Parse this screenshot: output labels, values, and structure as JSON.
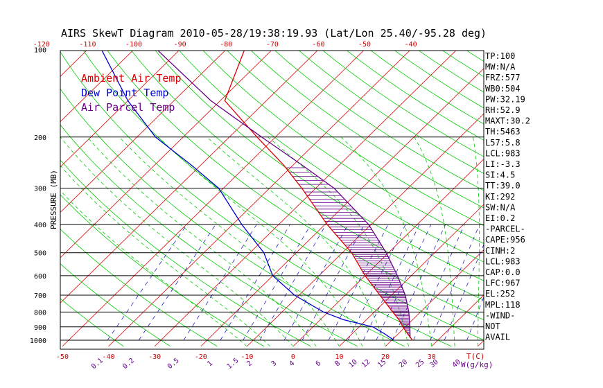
{
  "chart_data": {
    "type": "line",
    "title": "AIRS SkewT Diagram 2010-05-28/19:38:19.93 (Lat/Lon 25.40/-95.28 deg)",
    "ylabel": "PRESSURE (MB)",
    "xlabel": "T(C)",
    "mixing_ratio_unit": "W(g/kg)",
    "y_scale": "log",
    "ylim": [
      1050,
      100
    ],
    "pressure_ticks": [
      100,
      200,
      300,
      400,
      500,
      600,
      700,
      800,
      900,
      1000
    ],
    "bottom_temp_ticks": [
      -50,
      -40,
      -30,
      -20,
      -10,
      0,
      10,
      20,
      30
    ],
    "top_temp_ticks": [
      -120,
      -110,
      -100,
      -90,
      -80,
      -70,
      -60,
      -50,
      -40
    ],
    "mixing_ratio_labels": [
      "0.1",
      "0.2",
      "0.5",
      "1",
      "1.5",
      "2",
      "3",
      "4",
      "6",
      "8",
      "10",
      "12",
      "15",
      "20",
      "25",
      "30",
      "40"
    ],
    "legend": {
      "placement": "top-left",
      "entries": [
        {
          "label": "Ambient Air Temp",
          "color": "#dd0000"
        },
        {
          "label": "Dew Point Temp",
          "color": "#0000cc"
        },
        {
          "label": "Air Parcel Temp",
          "color": "#660088"
        }
      ]
    },
    "grid": true,
    "series": [
      {
        "name": "Ambient Air Temp",
        "color": "#dd0000",
        "points": [
          [
            1000,
            24.5
          ],
          [
            950,
            22
          ],
          [
            900,
            19.5
          ],
          [
            850,
            17
          ],
          [
            800,
            14
          ],
          [
            700,
            7.5
          ],
          [
            600,
            0
          ],
          [
            500,
            -8
          ],
          [
            400,
            -19.5
          ],
          [
            300,
            -33
          ],
          [
            250,
            -42
          ],
          [
            200,
            -54
          ],
          [
            150,
            -69
          ],
          [
            100,
            -76
          ]
        ]
      },
      {
        "name": "Dew Point Temp",
        "color": "#0000cc",
        "points": [
          [
            1000,
            20.5
          ],
          [
            950,
            17
          ],
          [
            900,
            13
          ],
          [
            850,
            5
          ],
          [
            800,
            -1
          ],
          [
            700,
            -11
          ],
          [
            600,
            -20
          ],
          [
            500,
            -27
          ],
          [
            400,
            -38
          ],
          [
            300,
            -51
          ],
          [
            250,
            -62
          ],
          [
            200,
            -76
          ],
          [
            150,
            -90
          ],
          [
            100,
            -107
          ]
        ]
      },
      {
        "name": "Air Parcel Temp",
        "color": "#660088",
        "points": [
          [
            983,
            23.5
          ],
          [
            900,
            21
          ],
          [
            800,
            17.5
          ],
          [
            700,
            13
          ],
          [
            600,
            7
          ],
          [
            500,
            -0.5
          ],
          [
            400,
            -10.5
          ],
          [
            300,
            -26
          ],
          [
            250,
            -38
          ],
          [
            200,
            -53
          ],
          [
            150,
            -72
          ],
          [
            100,
            -95
          ]
        ]
      }
    ],
    "indices": [
      "TP:100",
      "MW:N/A",
      "FRZ:577",
      "WB0:504",
      "PW:32.19",
      "RH:52.9",
      "MAXT:30.2",
      "TH:5463",
      "L57:5.8",
      "LCL:983",
      "LI:-3.3",
      "SI:4.5",
      "TT:39.0",
      "KI:292",
      "SW:N/A",
      "EI:0.2",
      "-PARCEL-",
      "CAPE:956",
      "CINH:2",
      "LCL:983",
      "CAP:0.0",
      "LFC:967",
      "EL:252",
      "MPL:118",
      "-WIND-",
      "NOT",
      "AVAIL"
    ],
    "colors": {
      "isotherm": "#dd0000",
      "dry_adiabat": "#00cc00",
      "moist_adiabat": "#00cc00",
      "mixing_ratio": "#2222cc",
      "axis_label": "#cc0000",
      "mixing_label": "#660088",
      "cape_hatch": "#660088"
    }
  }
}
